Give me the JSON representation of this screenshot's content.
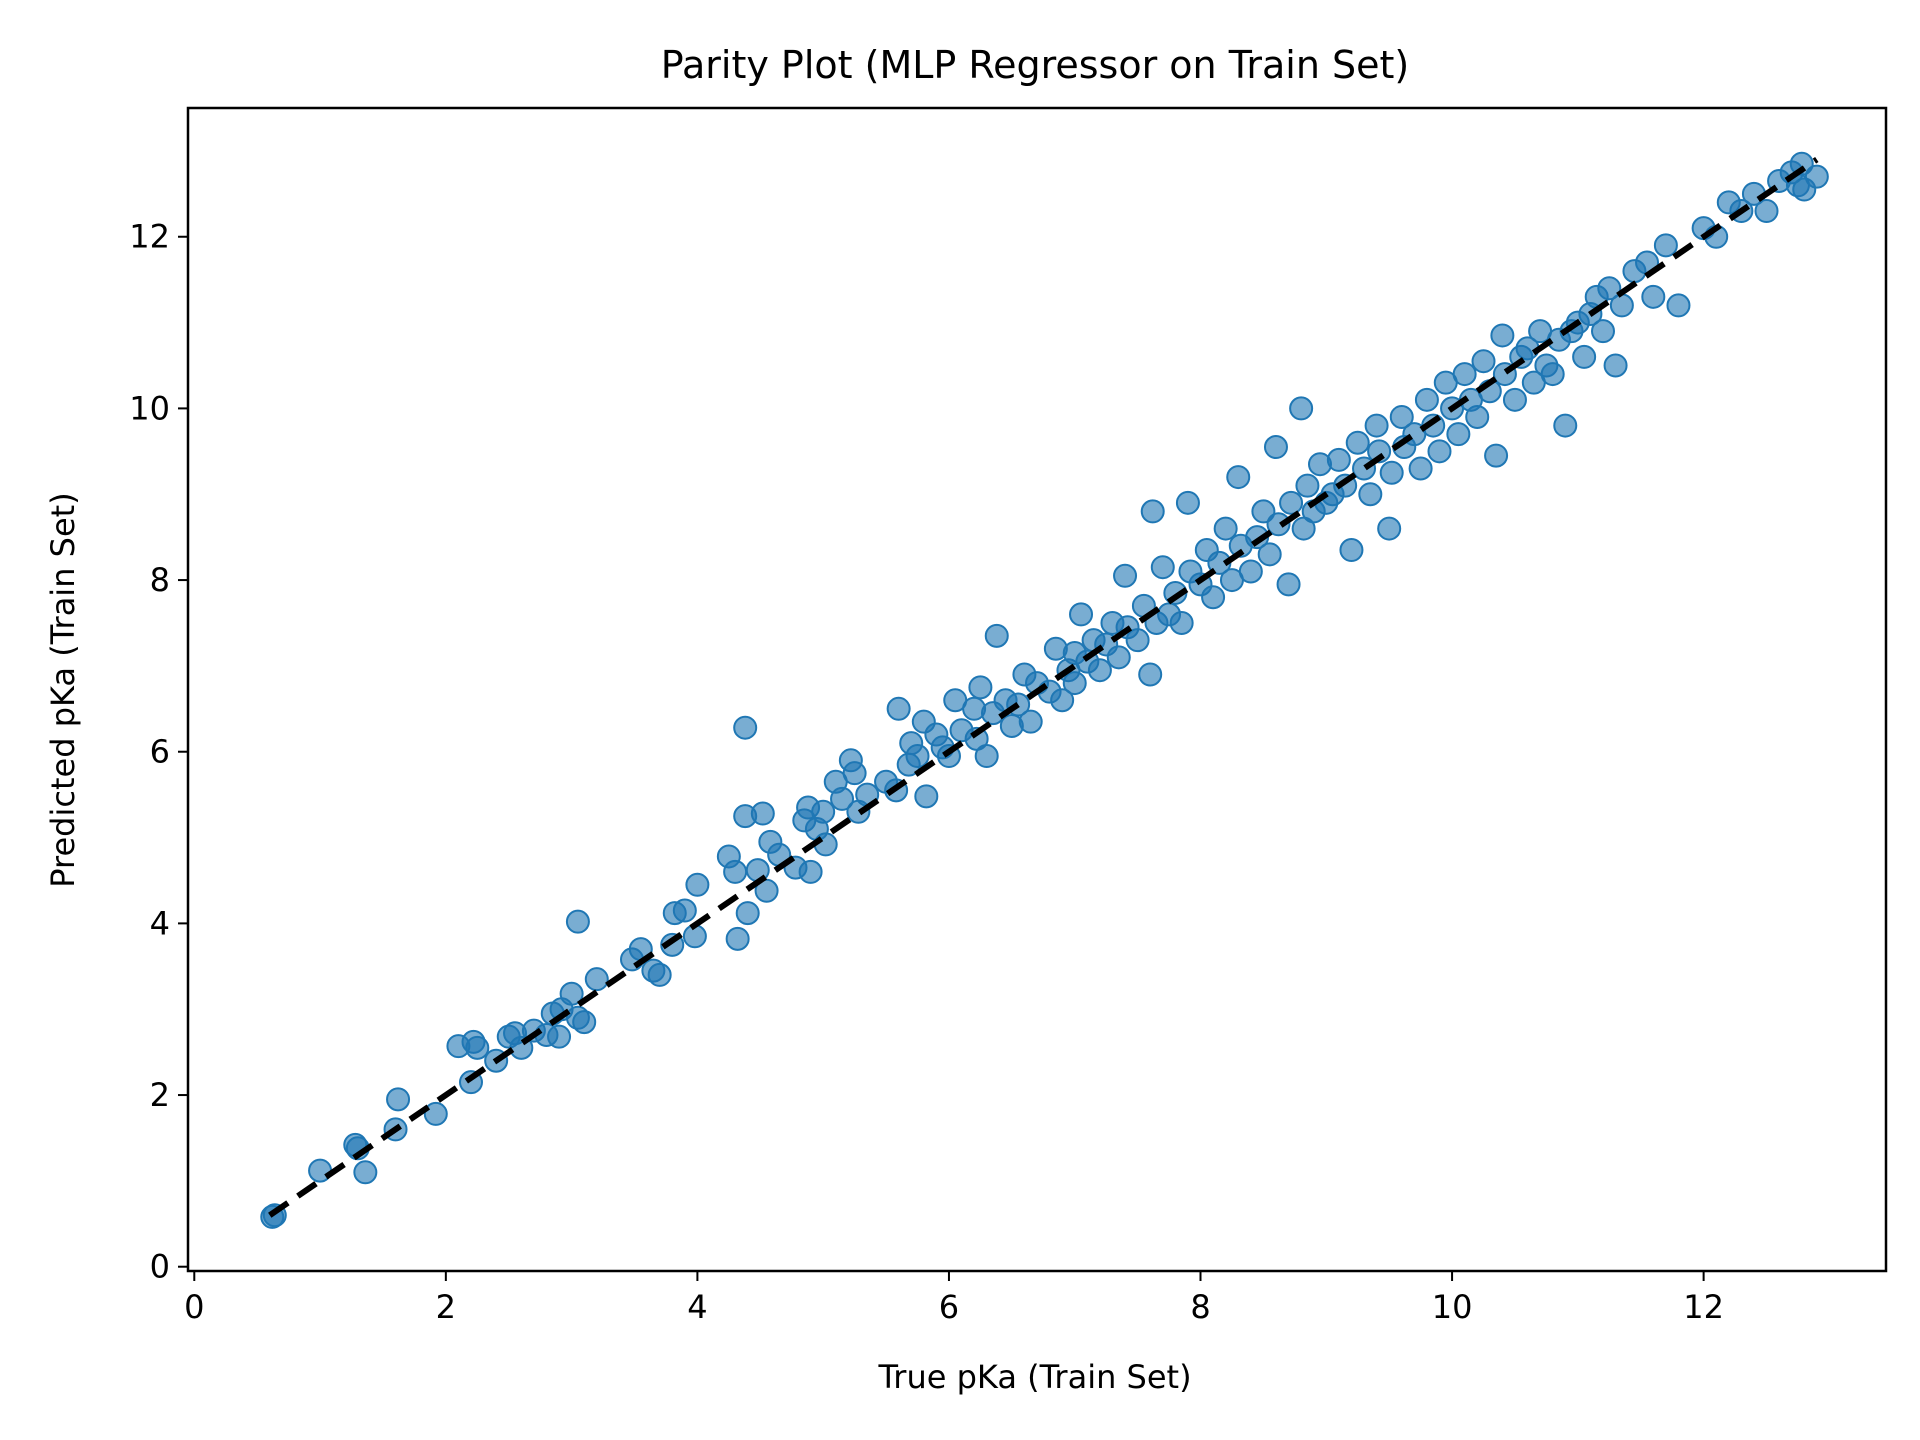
{
  "chart_data": {
    "type": "scatter",
    "title": "Parity Plot (MLP Regressor on Train Set)",
    "xlabel": "True pKa (Train Set)",
    "ylabel": "Predicted pKa (Train Set)",
    "xlim": [
      -0.05,
      13.45
    ],
    "ylim": [
      -0.05,
      13.5
    ],
    "xticks": [
      0,
      2,
      4,
      6,
      8,
      10,
      12
    ],
    "yticks": [
      0,
      2,
      4,
      6,
      8,
      10,
      12
    ],
    "grid": false,
    "legend": "none",
    "marker_color": "#1f77b4",
    "marker_alpha": 0.6,
    "reference_line": {
      "style": "dashed",
      "color": "#000000",
      "from": [
        0.6,
        0.6
      ],
      "to": [
        12.9,
        12.9
      ]
    },
    "series": [
      {
        "points": [
          [
            0.62,
            0.58
          ],
          [
            0.64,
            0.6
          ],
          [
            1.0,
            1.12
          ],
          [
            1.28,
            1.42
          ],
          [
            1.3,
            1.38
          ],
          [
            1.36,
            1.1
          ],
          [
            1.6,
            1.6
          ],
          [
            1.62,
            1.95
          ],
          [
            1.92,
            1.78
          ],
          [
            2.1,
            2.57
          ],
          [
            2.2,
            2.15
          ],
          [
            2.22,
            2.62
          ],
          [
            2.25,
            2.55
          ],
          [
            2.4,
            2.4
          ],
          [
            2.5,
            2.68
          ],
          [
            2.55,
            2.72
          ],
          [
            2.6,
            2.55
          ],
          [
            2.7,
            2.75
          ],
          [
            2.8,
            2.7
          ],
          [
            2.85,
            2.95
          ],
          [
            2.9,
            2.68
          ],
          [
            2.92,
            3.0
          ],
          [
            3.0,
            3.18
          ],
          [
            3.05,
            2.9
          ],
          [
            3.05,
            4.02
          ],
          [
            3.1,
            2.85
          ],
          [
            3.2,
            3.35
          ],
          [
            3.48,
            3.58
          ],
          [
            3.55,
            3.7
          ],
          [
            3.65,
            3.45
          ],
          [
            3.7,
            3.4
          ],
          [
            3.8,
            3.75
          ],
          [
            3.82,
            4.12
          ],
          [
            3.9,
            4.15
          ],
          [
            3.98,
            3.85
          ],
          [
            4.0,
            4.45
          ],
          [
            4.25,
            4.78
          ],
          [
            4.3,
            4.6
          ],
          [
            4.32,
            3.82
          ],
          [
            4.38,
            6.28
          ],
          [
            4.38,
            5.25
          ],
          [
            4.4,
            4.12
          ],
          [
            4.48,
            4.62
          ],
          [
            4.52,
            5.28
          ],
          [
            4.55,
            4.38
          ],
          [
            4.58,
            4.95
          ],
          [
            4.65,
            4.8
          ],
          [
            4.78,
            4.65
          ],
          [
            4.85,
            5.2
          ],
          [
            4.88,
            5.35
          ],
          [
            4.9,
            4.6
          ],
          [
            4.95,
            5.1
          ],
          [
            5.0,
            5.3
          ],
          [
            5.02,
            4.92
          ],
          [
            5.1,
            5.65
          ],
          [
            5.15,
            5.45
          ],
          [
            5.22,
            5.9
          ],
          [
            5.25,
            5.75
          ],
          [
            5.28,
            5.3
          ],
          [
            5.35,
            5.5
          ],
          [
            5.5,
            5.65
          ],
          [
            5.58,
            5.55
          ],
          [
            5.6,
            6.5
          ],
          [
            5.68,
            5.85
          ],
          [
            5.7,
            6.1
          ],
          [
            5.75,
            5.95
          ],
          [
            5.8,
            6.35
          ],
          [
            5.82,
            5.48
          ],
          [
            5.9,
            6.2
          ],
          [
            5.95,
            6.05
          ],
          [
            6.0,
            5.95
          ],
          [
            6.05,
            6.6
          ],
          [
            6.1,
            6.25
          ],
          [
            6.2,
            6.5
          ],
          [
            6.22,
            6.15
          ],
          [
            6.25,
            6.75
          ],
          [
            6.3,
            5.95
          ],
          [
            6.35,
            6.45
          ],
          [
            6.38,
            7.35
          ],
          [
            6.45,
            6.6
          ],
          [
            6.5,
            6.3
          ],
          [
            6.55,
            6.55
          ],
          [
            6.6,
            6.9
          ],
          [
            6.65,
            6.35
          ],
          [
            6.7,
            6.8
          ],
          [
            6.8,
            6.7
          ],
          [
            6.85,
            7.2
          ],
          [
            6.9,
            6.6
          ],
          [
            6.95,
            6.95
          ],
          [
            7.0,
            7.15
          ],
          [
            7.0,
            6.8
          ],
          [
            7.05,
            7.6
          ],
          [
            7.1,
            7.05
          ],
          [
            7.15,
            7.3
          ],
          [
            7.2,
            6.95
          ],
          [
            7.25,
            7.25
          ],
          [
            7.3,
            7.5
          ],
          [
            7.35,
            7.1
          ],
          [
            7.4,
            8.05
          ],
          [
            7.42,
            7.45
          ],
          [
            7.5,
            7.3
          ],
          [
            7.55,
            7.7
          ],
          [
            7.6,
            6.9
          ],
          [
            7.62,
            8.8
          ],
          [
            7.65,
            7.5
          ],
          [
            7.7,
            8.15
          ],
          [
            7.75,
            7.6
          ],
          [
            7.8,
            7.85
          ],
          [
            7.85,
            7.5
          ],
          [
            7.9,
            8.9
          ],
          [
            7.92,
            8.1
          ],
          [
            8.0,
            7.95
          ],
          [
            8.05,
            8.35
          ],
          [
            8.1,
            7.8
          ],
          [
            8.15,
            8.2
          ],
          [
            8.2,
            8.6
          ],
          [
            8.25,
            8.0
          ],
          [
            8.3,
            9.2
          ],
          [
            8.32,
            8.4
          ],
          [
            8.4,
            8.1
          ],
          [
            8.45,
            8.5
          ],
          [
            8.5,
            8.8
          ],
          [
            8.55,
            8.3
          ],
          [
            8.6,
            9.55
          ],
          [
            8.62,
            8.65
          ],
          [
            8.7,
            7.95
          ],
          [
            8.72,
            8.9
          ],
          [
            8.8,
            10.0
          ],
          [
            8.82,
            8.6
          ],
          [
            8.85,
            9.1
          ],
          [
            8.9,
            8.8
          ],
          [
            8.95,
            9.35
          ],
          [
            9.0,
            8.9
          ],
          [
            9.05,
            9.0
          ],
          [
            9.1,
            9.4
          ],
          [
            9.15,
            9.1
          ],
          [
            9.2,
            8.35
          ],
          [
            9.25,
            9.6
          ],
          [
            9.3,
            9.3
          ],
          [
            9.35,
            9.0
          ],
          [
            9.4,
            9.8
          ],
          [
            9.42,
            9.5
          ],
          [
            9.5,
            8.6
          ],
          [
            9.52,
            9.25
          ],
          [
            9.6,
            9.9
          ],
          [
            9.62,
            9.55
          ],
          [
            9.7,
            9.7
          ],
          [
            9.75,
            9.3
          ],
          [
            9.8,
            10.1
          ],
          [
            9.85,
            9.8
          ],
          [
            9.9,
            9.5
          ],
          [
            9.95,
            10.3
          ],
          [
            10.0,
            10.0
          ],
          [
            10.05,
            9.7
          ],
          [
            10.1,
            10.4
          ],
          [
            10.15,
            10.1
          ],
          [
            10.2,
            9.9
          ],
          [
            10.25,
            10.55
          ],
          [
            10.3,
            10.2
          ],
          [
            10.35,
            9.45
          ],
          [
            10.4,
            10.85
          ],
          [
            10.42,
            10.4
          ],
          [
            10.5,
            10.1
          ],
          [
            10.55,
            10.6
          ],
          [
            10.6,
            10.7
          ],
          [
            10.65,
            10.3
          ],
          [
            10.7,
            10.9
          ],
          [
            10.75,
            10.5
          ],
          [
            10.8,
            10.4
          ],
          [
            10.85,
            10.8
          ],
          [
            10.9,
            9.8
          ],
          [
            10.95,
            10.9
          ],
          [
            11.0,
            11.0
          ],
          [
            11.05,
            10.6
          ],
          [
            11.1,
            11.1
          ],
          [
            11.15,
            11.3
          ],
          [
            11.2,
            10.9
          ],
          [
            11.25,
            11.4
          ],
          [
            11.3,
            10.5
          ],
          [
            11.35,
            11.2
          ],
          [
            11.45,
            11.6
          ],
          [
            11.55,
            11.7
          ],
          [
            11.6,
            11.3
          ],
          [
            11.7,
            11.9
          ],
          [
            11.8,
            11.2
          ],
          [
            12.0,
            12.1
          ],
          [
            12.1,
            12.0
          ],
          [
            12.2,
            12.4
          ],
          [
            12.3,
            12.3
          ],
          [
            12.4,
            12.5
          ],
          [
            12.5,
            12.3
          ],
          [
            12.6,
            12.65
          ],
          [
            12.7,
            12.75
          ],
          [
            12.75,
            12.6
          ],
          [
            12.78,
            12.85
          ],
          [
            12.8,
            12.55
          ],
          [
            12.9,
            12.7
          ]
        ]
      }
    ]
  }
}
